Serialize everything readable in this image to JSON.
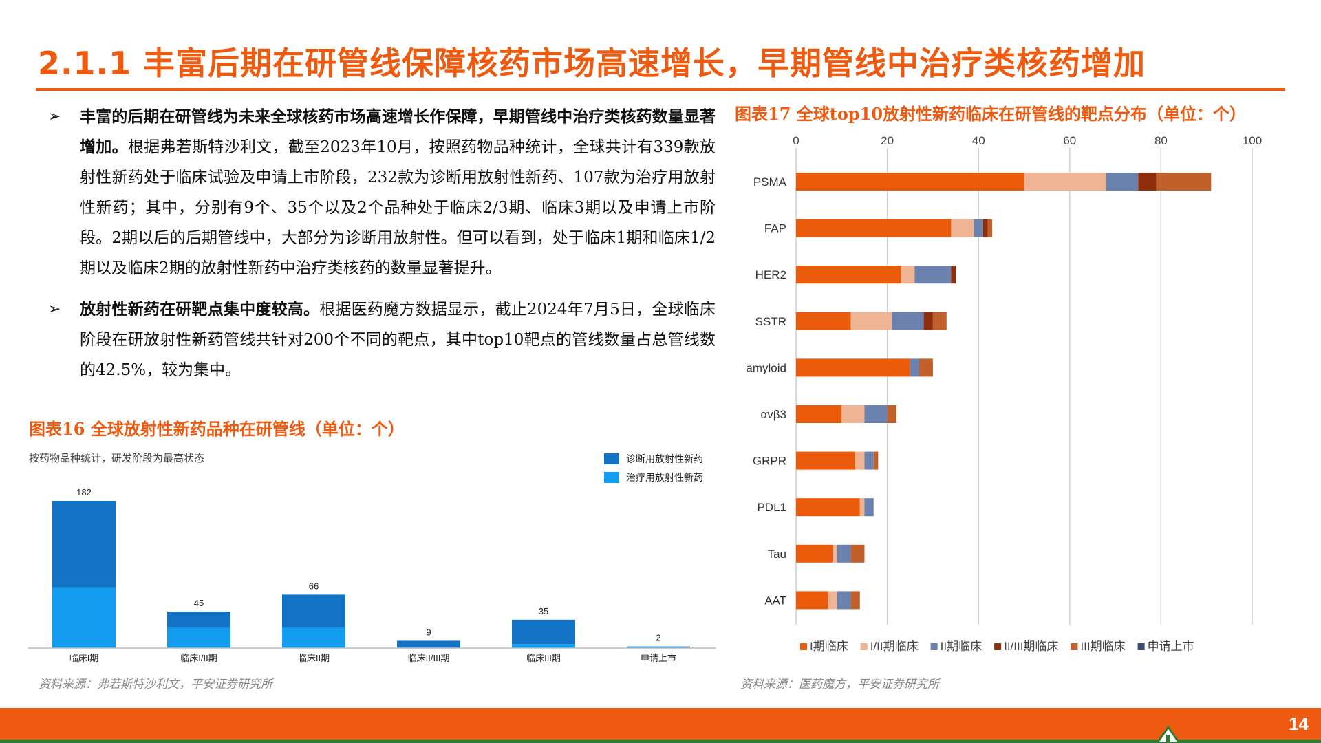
{
  "header": {
    "title": "2.1.1 丰富后期在研管线保障核药市场高速增长，早期管线中治疗类核药增加"
  },
  "bullets": [
    {
      "mark": "➢",
      "bold": "丰富的后期在研管线为未来全球核药市场高速增长作保障，早期管线中治疗类核药数量显著增加。",
      "text": "根据弗若斯特沙利文，截至2023年10月，按照药物品种统计，全球共计有339款放射性新药处于临床试验及申请上市阶段，232款为诊断用放射性新药、107款为治疗用放射性新药；其中，分别有9个、35个以及2个品种处于临床2/3期、临床3期以及申请上市阶段。2期以后的后期管线中，大部分为诊断用放射性。但可以看到，处于临床1期和临床1/2期以及临床2期的放射性新药中治疗类核药的数量显著提升。"
    },
    {
      "mark": "➢",
      "bold": "放射性新药在研靶点集中度较高。",
      "text": "根据医药魔方数据显示，截止2024年7月5日，全球临床阶段在研放射性新药管线共针对200个不同的靶点，其中top10靶点的管线数量占总管线数的42.5%，较为集中。"
    }
  ],
  "figure16": {
    "title": "图表16 全球放射性新药品种在研管线（单位：个）",
    "subtitle": "按药物品种统计，研发阶段为最高状态",
    "source": "资料来源：弗若斯特沙利文，平安证券研究所"
  },
  "figure17": {
    "title": "图表17 全球top10放射性新药临床在研管线的靶点分布（单位：个）",
    "source": "资料来源：医药魔方，平安证券研究所"
  },
  "chart_data": [
    {
      "type": "bar",
      "stacked": true,
      "categories": [
        "临床I期",
        "临床I/II期",
        "临床II期",
        "临床II/III期",
        "临床III期",
        "申请上市"
      ],
      "totals": [
        182,
        45,
        66,
        9,
        35,
        2
      ],
      "series": [
        {
          "name": "诊断用放射性新药",
          "color": "#1273c4",
          "values": [
            107,
            20,
            41,
            9,
            30,
            2
          ]
        },
        {
          "name": "治疗用放射性新药",
          "color": "#119cf0",
          "values": [
            75,
            25,
            25,
            0,
            5,
            0
          ]
        }
      ],
      "legend": "top-right",
      "grid": false
    },
    {
      "type": "bar",
      "orientation": "horizontal",
      "stacked": true,
      "categories": [
        "PSMA",
        "FAP",
        "HER2",
        "SSTR",
        "amyloid",
        "αvβ3",
        "GRPR",
        "PDL1",
        "Tau",
        "AAT"
      ],
      "xlim": [
        0,
        100
      ],
      "xticks": [
        "0",
        "20",
        "40",
        "60",
        "80",
        "100"
      ],
      "series": [
        {
          "name": "I期临床",
          "color": "#ea5b0c",
          "values": [
            50,
            34,
            23,
            12,
            25,
            10,
            13,
            14,
            8,
            7
          ]
        },
        {
          "name": "I/II期临床",
          "color": "#eeb494",
          "values": [
            18,
            5,
            3,
            9,
            0,
            5,
            2,
            1,
            1,
            2
          ]
        },
        {
          "name": "II期临床",
          "color": "#6a82ad",
          "values": [
            7,
            2,
            8,
            7,
            2,
            5,
            2,
            2,
            3,
            3
          ]
        },
        {
          "name": "II/III期临床",
          "color": "#8e2e0a",
          "values": [
            4,
            1,
            1,
            2,
            0,
            0,
            0,
            0,
            0,
            0
          ]
        },
        {
          "name": "III期临床",
          "color": "#c2602b",
          "values": [
            12,
            1,
            0,
            3,
            3,
            2,
            1,
            0,
            3,
            2
          ]
        },
        {
          "name": "申请上市",
          "color": "#3c4e6e",
          "values": [
            0,
            0,
            0,
            0,
            0,
            0,
            0,
            0,
            0,
            0
          ]
        }
      ],
      "legend": "bottom",
      "grid": true
    }
  ],
  "footer": {
    "page": "14"
  }
}
